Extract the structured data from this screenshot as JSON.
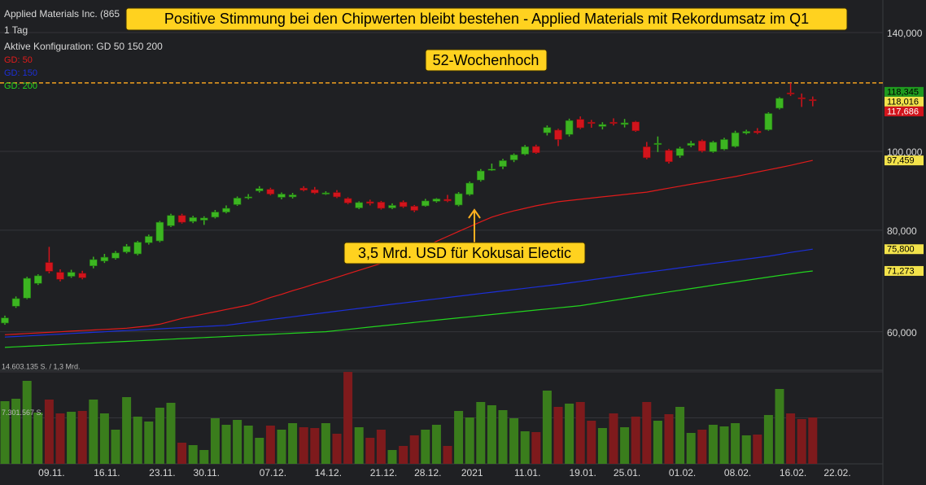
{
  "chart_data": [
    {
      "type": "candlestick",
      "title": "Applied Materials Inc. (865",
      "interval": "1 Tag",
      "config": "Aktive Konfiguration: GD 50 150 200",
      "log": true,
      "ylim": [
        53.8,
        153.5
      ],
      "yticks": [
        {
          "value": 140,
          "label": "140,000"
        },
        {
          "value": 100,
          "label": "100,000"
        },
        {
          "value": 80,
          "label": "80,000"
        },
        {
          "value": 60,
          "label": "60,000"
        }
      ],
      "grid": true,
      "up_color": "#3cb521",
      "down_color": "#d2141c",
      "categories": [
        null,
        null,
        null,
        null,
        "09.11.",
        null,
        null,
        null,
        null,
        "16.11.",
        null,
        null,
        null,
        null,
        "23.11.",
        null,
        null,
        null,
        "30.11.",
        null,
        null,
        null,
        null,
        null,
        "07.12.",
        null,
        null,
        null,
        null,
        "14.12.",
        null,
        null,
        null,
        null,
        "21.12.",
        null,
        null,
        null,
        "28.12.",
        null,
        null,
        null,
        "2021",
        null,
        null,
        null,
        null,
        "11.01.",
        null,
        null,
        null,
        null,
        "19.01.",
        null,
        null,
        null,
        "25.01.",
        null,
        null,
        null,
        null,
        "01.02.",
        null,
        null,
        null,
        null,
        "08.02.",
        null,
        null,
        null,
        null,
        "16.02.",
        null,
        null,
        null,
        "22.02."
      ],
      "open": [
        61.5,
        64.5,
        66.0,
        68.8,
        73.0,
        71.0,
        70.2,
        70.8,
        72.3,
        73.3,
        73.9,
        75.2,
        74.8,
        77.2,
        77.6,
        81.0,
        83.4,
        82.0,
        82.3,
        83.0,
        84.2,
        86.0,
        87.6,
        89.4,
        89.8,
        87.8,
        87.9,
        90.1,
        89.7,
        88.8,
        89.0,
        87.5,
        85.2,
        86.7,
        86.6,
        85.2,
        86.6,
        85.6,
        85.7,
        86.8,
        87.3,
        85.9,
        88.5,
        92.2,
        94.9,
        95.8,
        97.6,
        99.2,
        101.4,
        105.4,
        106.2,
        104.9,
        109.5,
        108.6,
        107.3,
        108.6,
        107.9,
        108.7,
        101.3,
        102.0,
        100.3,
        98.8,
        101.7,
        103.0,
        99.9,
        100.6,
        101.4,
        105.3,
        105.9,
        106.3,
        113.0,
        118.0,
        116.4,
        115.8,
        null,
        null
      ],
      "high": [
        62.8,
        66.3,
        70.1,
        70.6,
        76.3,
        71.6,
        71.5,
        71.3,
        74.2,
        74.8,
        75.4,
        76.9,
        77.6,
        79.0,
        82.1,
        83.8,
        83.8,
        83.3,
        83.2,
        84.7,
        85.8,
        88.0,
        88.6,
        90.6,
        90.2,
        89.0,
        88.9,
        90.6,
        90.4,
        89.3,
        89.6,
        87.8,
        86.8,
        87.2,
        86.9,
        86.3,
        87.0,
        85.9,
        87.4,
        87.6,
        88.4,
        89.1,
        91.8,
        95.1,
        96.6,
        97.9,
        99.4,
        101.8,
        101.9,
        107.6,
        106.6,
        109.7,
        110.4,
        109.3,
        108.6,
        109.8,
        109.6,
        109.0,
        102.7,
        104.3,
        100.7,
        101.3,
        103.0,
        103.4,
        103.0,
        103.9,
        106.0,
        106.3,
        106.8,
        111.7,
        116.6,
        121.4,
        117.8,
        116.8,
        null,
        null
      ],
      "low": [
        61.2,
        64.2,
        65.8,
        68.5,
        70.8,
        69.2,
        69.9,
        69.6,
        71.8,
        72.9,
        73.6,
        74.9,
        74.5,
        76.8,
        77.3,
        80.7,
        81.5,
        81.6,
        81.2,
        82.7,
        83.9,
        85.7,
        87.3,
        89.0,
        88.3,
        87.3,
        87.5,
        89.3,
        88.6,
        88.4,
        87.6,
        86.1,
        84.9,
        85.8,
        84.8,
        84.9,
        85.2,
        84.2,
        85.5,
        86.5,
        86.6,
        85.6,
        88.2,
        91.8,
        94.6,
        95.1,
        97.0,
        98.9,
        99.3,
        104.6,
        101.5,
        104.3,
        106.5,
        106.9,
        106.4,
        107.6,
        107.0,
        105.7,
        97.8,
        99.8,
        96.6,
        98.2,
        101.2,
        99.7,
        99.6,
        100.3,
        101.1,
        104.9,
        105.0,
        106.0,
        112.6,
        117.0,
        113.4,
        113.6,
        null,
        null
      ],
      "close": [
        62.4,
        65.9,
        69.8,
        70.3,
        71.2,
        69.6,
        71.0,
        69.9,
        73.6,
        74.1,
        75.0,
        76.4,
        77.3,
        78.6,
        81.8,
        83.4,
        81.8,
        82.9,
        82.8,
        84.2,
        85.1,
        87.6,
        87.9,
        90.0,
        88.6,
        88.6,
        88.4,
        89.6,
        88.9,
        88.9,
        87.9,
        86.4,
        86.5,
        86.3,
        85.1,
        85.8,
        85.5,
        84.6,
        86.9,
        87.4,
        86.9,
        88.7,
        91.4,
        94.6,
        95.1,
        97.4,
        99.0,
        101.3,
        99.6,
        107.0,
        103.4,
        109.1,
        106.9,
        108.2,
        107.9,
        108.2,
        108.4,
        106.0,
        98.2,
        102.3,
        97.1,
        100.8,
        102.3,
        100.1,
        102.6,
        103.4,
        105.4,
        105.8,
        105.4,
        111.3,
        116.2,
        117.6,
        116.3,
        115.6,
        null,
        null
      ],
      "series": [
        {
          "name": "GD: 50",
          "color": "#e01b1b",
          "values": [
            59.5,
            59.6,
            59.7,
            59.8,
            59.9,
            60.0,
            60.1,
            60.2,
            60.3,
            60.4,
            60.5,
            60.6,
            60.8,
            61.0,
            61.3,
            61.8,
            62.3,
            62.7,
            63.1,
            63.5,
            63.9,
            64.3,
            64.7,
            65.4,
            66.1,
            66.7,
            67.4,
            68.0,
            68.7,
            69.3,
            70.0,
            70.7,
            71.4,
            72.1,
            72.8,
            73.5,
            74.2,
            75.3,
            76.4,
            77.5,
            78.6,
            79.7,
            80.8,
            81.9,
            83.0,
            83.8,
            84.5,
            85.1,
            85.7,
            86.2,
            86.7,
            87.0,
            87.3,
            87.6,
            87.9,
            88.2,
            88.5,
            88.8,
            89.1,
            89.6,
            90.1,
            90.6,
            91.1,
            91.6,
            92.1,
            92.6,
            93.1,
            93.7,
            94.3,
            94.9,
            95.5,
            96.1,
            96.8,
            97.46,
            null,
            null
          ]
        },
        {
          "name": "GD: 150",
          "color": "#1c2fd8",
          "values": [
            59.1,
            59.2,
            59.3,
            59.4,
            59.5,
            59.6,
            59.7,
            59.8,
            59.9,
            60.0,
            60.1,
            60.2,
            60.3,
            60.4,
            60.5,
            60.6,
            60.7,
            60.8,
            60.9,
            61.0,
            61.1,
            61.35,
            61.6,
            61.85,
            62.1,
            62.35,
            62.6,
            62.85,
            63.1,
            63.35,
            63.6,
            63.85,
            64.1,
            64.35,
            64.6,
            64.85,
            65.1,
            65.35,
            65.6,
            65.85,
            66.1,
            66.35,
            66.6,
            66.85,
            67.1,
            67.35,
            67.6,
            67.85,
            68.1,
            68.35,
            68.6,
            68.9,
            69.2,
            69.5,
            69.8,
            70.1,
            70.4,
            70.7,
            71.0,
            71.3,
            71.6,
            71.9,
            72.2,
            72.5,
            72.8,
            73.1,
            73.4,
            73.7,
            74.0,
            74.3,
            74.7,
            75.1,
            75.45,
            75.8,
            null,
            null
          ]
        },
        {
          "name": "GD: 200",
          "color": "#22d41e",
          "values": [
            57.4,
            57.49,
            57.58,
            57.67,
            57.76,
            57.85,
            57.94,
            58.03,
            58.12,
            58.21,
            58.3,
            58.39,
            58.48,
            58.57,
            58.66,
            58.75,
            58.84,
            58.93,
            59.02,
            59.11,
            59.2,
            59.29,
            59.38,
            59.47,
            59.56,
            59.65,
            59.74,
            59.83,
            59.92,
            60.01,
            60.2,
            60.4,
            60.6,
            60.8,
            61.0,
            61.2,
            61.4,
            61.6,
            61.8,
            62.0,
            62.2,
            62.4,
            62.6,
            62.8,
            63.0,
            63.2,
            63.4,
            63.6,
            63.8,
            64.0,
            64.2,
            64.4,
            64.6,
            64.92,
            65.24,
            65.56,
            65.88,
            66.2,
            66.52,
            66.84,
            67.16,
            67.48,
            67.8,
            68.12,
            68.44,
            68.76,
            69.08,
            69.4,
            69.72,
            70.04,
            70.36,
            70.68,
            71.0,
            71.27,
            null,
            null
          ]
        }
      ],
      "price_labels": [
        {
          "value": 118.345,
          "label": "118,345",
          "color": "#1f9a1f"
        },
        {
          "value": 118.016,
          "label": "118,016",
          "color": "#f3e34b"
        },
        {
          "value": 117.686,
          "label": "117,686",
          "color": "#d2141c"
        },
        {
          "value": 97.459,
          "label": "97,459",
          "color": "#f3e34b"
        },
        {
          "value": 75.8,
          "label": "75,800",
          "color": "#f3e34b"
        },
        {
          "value": 71.273,
          "label": "71,273",
          "color": "#f3e34b"
        }
      ],
      "high_line": {
        "value": 121.4,
        "color": "#f0a020"
      },
      "annotations": [
        {
          "text": "Positive Stimmung bei den Chipwerten bleibt bestehen - Applied Materials mit Rekordumsatz im Q1"
        },
        {
          "text": "52-Wochenhoch"
        },
        {
          "text": "3,5 Mrd. USD für Kokusai Electic"
        }
      ]
    },
    {
      "type": "bar",
      "up_color": "#3a7d1c",
      "down_color": "#7e1a1c",
      "ylim": [
        0,
        14603135
      ],
      "yticks": [
        {
          "value": 14603135,
          "label": "14.603.135 S. / 1,3 Mrd."
        },
        {
          "value": 7301567,
          "label": "7.301.567 S."
        }
      ],
      "values": [
        9951000,
        10338000,
        13182000,
        8142000,
        10209000,
        8012000,
        8271000,
        8400000,
        10209000,
        8012000,
        5428000,
        10597000,
        7495000,
        6720000,
        8917000,
        9692000,
        3360000,
        2972000,
        2197000,
        7237000,
        6203000,
        6978000,
        6074000,
        4135000,
        6074000,
        5428000,
        6462000,
        5815000,
        5686000,
        6462000,
        4782000,
        14603135,
        5815000,
        4135000,
        5428000,
        2197000,
        2843000,
        4523000,
        5428000,
        6203000,
        2843000,
        8400000,
        7366000,
        9822000,
        9305000,
        8529000,
        7237000,
        5169000,
        5040000,
        11631000,
        9046000,
        9563000,
        9822000,
        6849000,
        5686000,
        8012000,
        5815000,
        7495000,
        9822000,
        6849000,
        7883000,
        9046000,
        4911000,
        5428000,
        6203000,
        5945000,
        6462000,
        4523000,
        4652000,
        7754000,
        11889000,
        8012000,
        7108000,
        7366000,
        null,
        null
      ]
    }
  ]
}
